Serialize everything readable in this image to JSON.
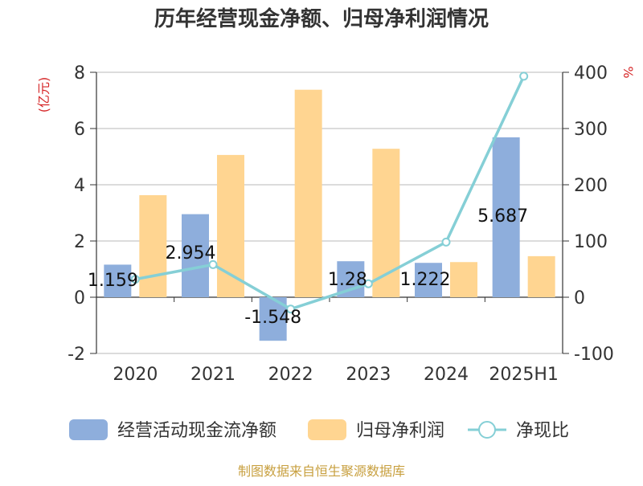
{
  "title": "历年经营现金净额、归母净利润情况",
  "source": "制图数据来自恒生聚源数据库",
  "chart_data": {
    "type": "bar",
    "categories": [
      "2020",
      "2021",
      "2022",
      "2023",
      "2024",
      "2025H1"
    ],
    "y_left": {
      "label": "(亿元)",
      "ticks": [
        "-2",
        "0",
        "2",
        "4",
        "6",
        "8"
      ],
      "ylim": [
        -2,
        8
      ]
    },
    "y_right": {
      "label": "%",
      "ticks": [
        "-100",
        "0",
        "100",
        "200",
        "300",
        "400"
      ],
      "ylim": [
        -100,
        400
      ]
    },
    "grid": true,
    "legend_position": "bottom",
    "series": [
      {
        "name": "经营活动现金流净额",
        "type": "bar",
        "axis": "left",
        "color": "#8eaedc",
        "values": [
          1.159,
          2.954,
          -1.548,
          1.28,
          1.222,
          5.687
        ],
        "labels": [
          "1.159",
          "2.954",
          "-1.548",
          "1.28",
          "1.222",
          "5.687"
        ]
      },
      {
        "name": "归母净利润",
        "type": "bar",
        "axis": "left",
        "color": "#ffd591",
        "values": [
          3.63,
          5.06,
          7.38,
          5.28,
          1.25,
          1.46
        ]
      },
      {
        "name": "净现比",
        "type": "line",
        "axis": "right",
        "color": "#85cfd6",
        "values": [
          32,
          58,
          -21,
          24,
          98,
          393
        ]
      }
    ]
  }
}
